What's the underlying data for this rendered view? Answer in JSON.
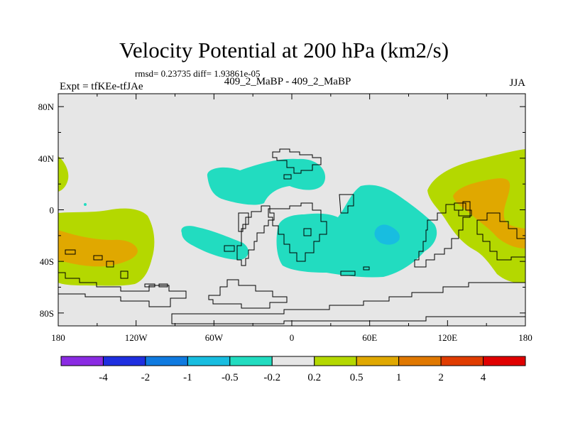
{
  "chart_data": {
    "type": "heatmap",
    "title": "Velocity Potential at 200 hPa (km2/s)",
    "stats_label": "rmsd= 0.23735 diff= 1.93861e-05",
    "experiment_label": "Expt = tfKEe-tfJAe",
    "difference_label": "409_2_MaBP - 409_2_MaBP",
    "season": "JJA",
    "projection": "cylindrical equidistant",
    "xlim": [
      -180,
      180
    ],
    "ylim": [
      -90,
      90
    ],
    "x_ticks": [
      {
        "value": -180,
        "label": "180"
      },
      {
        "value": -120,
        "label": "120W"
      },
      {
        "value": -60,
        "label": "60W"
      },
      {
        "value": 0,
        "label": "0"
      },
      {
        "value": 60,
        "label": "60E"
      },
      {
        "value": 120,
        "label": "120E"
      },
      {
        "value": 180,
        "label": "180"
      }
    ],
    "y_ticks": [
      {
        "value": 80,
        "label": "80N"
      },
      {
        "value": 40,
        "label": "40N"
      },
      {
        "value": 0,
        "label": "0"
      },
      {
        "value": -40,
        "label": "40S"
      },
      {
        "value": -80,
        "label": "80S"
      }
    ],
    "colorbar": {
      "bin_colors": [
        "#8a2be2",
        "#1f2fe0",
        "#0f7ae0",
        "#18bde0",
        "#22dcc0",
        "#e6e6e6",
        "#b4d800",
        "#e0a800",
        "#e07800",
        "#e03c00",
        "#e00000"
      ],
      "labels": [
        "-4",
        "-2",
        "-1",
        "-0.5",
        "-0.2",
        "0.2",
        "0.5",
        "1",
        "2",
        "4"
      ]
    },
    "regions": [
      {
        "level": "-0.2 to -0.5",
        "color": "#22dcc0",
        "center": [
          -5,
          20
        ],
        "extent_lon": [
          -65,
          25
        ],
        "extent_lat": [
          5,
          35
        ]
      },
      {
        "level": "-0.2 to -0.5",
        "color": "#22dcc0",
        "center": [
          -45,
          -25
        ],
        "extent_lon": [
          -85,
          -30
        ],
        "extent_lat": [
          -38,
          -15
        ]
      },
      {
        "level": "-0.2 to -0.5",
        "color": "#22dcc0",
        "center": [
          45,
          -20
        ],
        "extent_lon": [
          -10,
          105
        ],
        "extent_lat": [
          -50,
          20
        ]
      },
      {
        "level": "-0.5 to -1",
        "color": "#18bde0",
        "center": [
          70,
          -20
        ],
        "extent_lon": [
          63,
          82
        ],
        "extent_lat": [
          -28,
          -12
        ]
      },
      {
        "level": "0.2 to 0.5",
        "color": "#b4d800",
        "center": [
          -145,
          -35
        ],
        "extent_lon": [
          -180,
          -105
        ],
        "extent_lat": [
          -62,
          -5
        ]
      },
      {
        "level": "0.5 to 1",
        "color": "#e0a800",
        "center": [
          -155,
          -32
        ],
        "extent_lon": [
          -180,
          -130
        ],
        "extent_lat": [
          -45,
          -18
        ]
      },
      {
        "level": "0.2 to 0.5",
        "color": "#b4d800",
        "center": [
          -175,
          25
        ],
        "extent_lon": [
          -180,
          -168
        ],
        "extent_lat": [
          10,
          40
        ]
      },
      {
        "level": "0.2 to 0.5",
        "color": "#b4d800",
        "center": [
          165,
          0
        ],
        "extent_lon": [
          105,
          180
        ],
        "extent_lat": [
          -58,
          42
        ]
      },
      {
        "level": "0.5 to 1",
        "color": "#e0a800",
        "center": [
          160,
          -5
        ],
        "extent_lon": [
          128,
          180
        ],
        "extent_lat": [
          -30,
          20
        ]
      }
    ]
  }
}
